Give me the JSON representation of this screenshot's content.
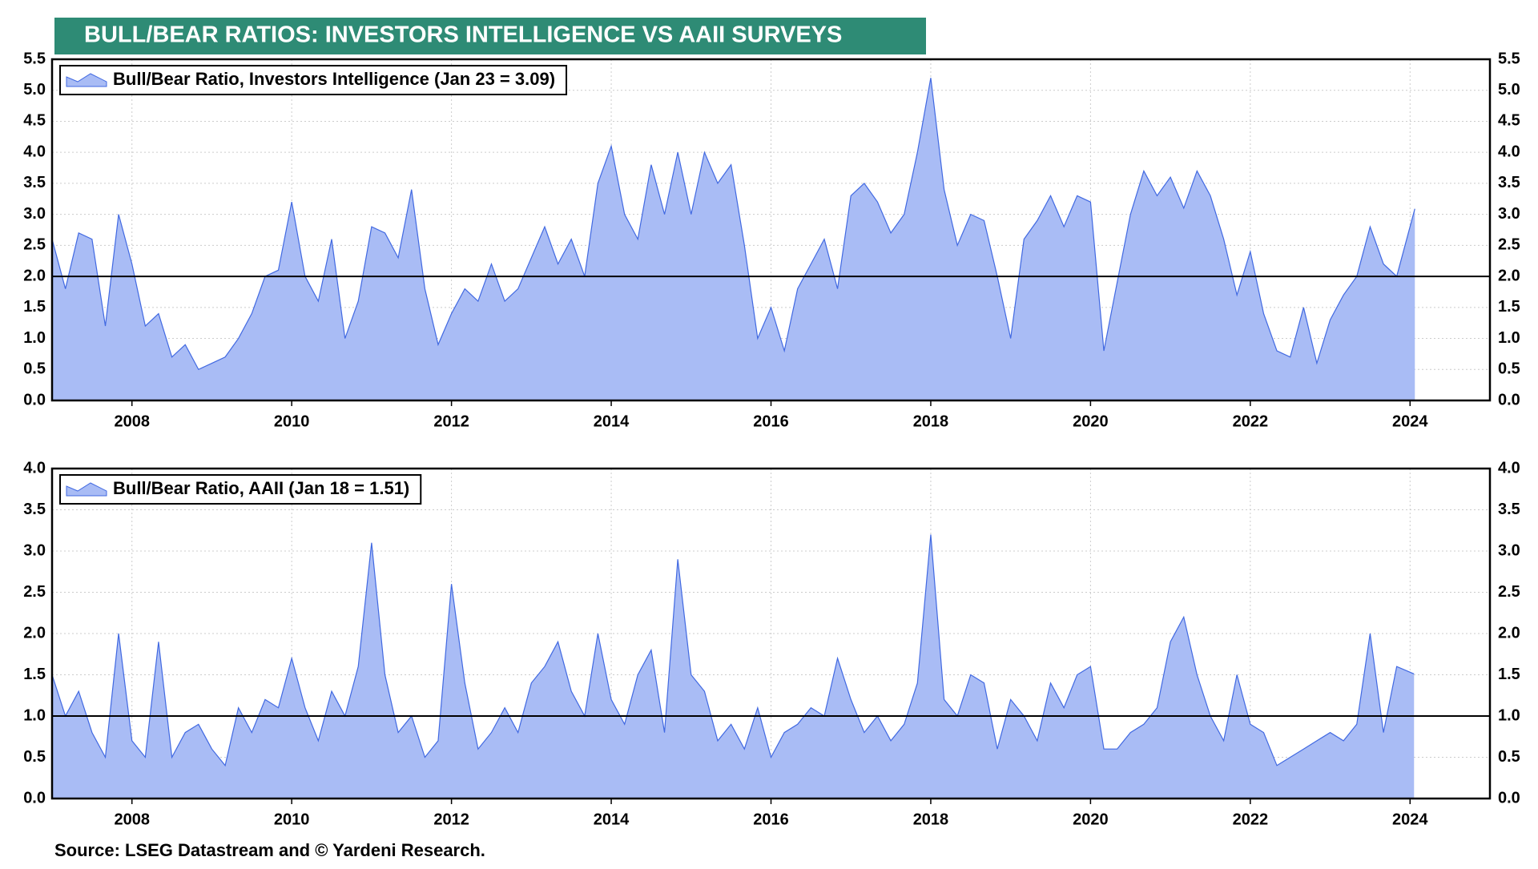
{
  "title": "BULL/BEAR RATIOS: INVESTORS INTELLIGENCE VS AAII SURVEYS",
  "source": "Source: LSEG Datastream and © Yardeni Research.",
  "chart_data": [
    {
      "type": "area",
      "series": [
        {
          "name": "Bull/Bear Ratio, Investors Intelligence (Jan 23 = 3.09)",
          "color": "#4169e1",
          "fill": "#a9bcf5",
          "x": [
            2007,
            2007.167,
            2007.333,
            2007.5,
            2007.667,
            2007.833,
            2008,
            2008.167,
            2008.333,
            2008.5,
            2008.667,
            2008.833,
            2009,
            2009.167,
            2009.333,
            2009.5,
            2009.667,
            2009.833,
            2010,
            2010.167,
            2010.333,
            2010.5,
            2010.667,
            2010.833,
            2011,
            2011.167,
            2011.333,
            2011.5,
            2011.667,
            2011.833,
            2012,
            2012.167,
            2012.333,
            2012.5,
            2012.667,
            2012.833,
            2013,
            2013.167,
            2013.333,
            2013.5,
            2013.667,
            2013.833,
            2014,
            2014.167,
            2014.333,
            2014.5,
            2014.667,
            2014.833,
            2015,
            2015.167,
            2015.333,
            2015.5,
            2015.667,
            2015.833,
            2016,
            2016.167,
            2016.333,
            2016.5,
            2016.667,
            2016.833,
            2017,
            2017.167,
            2017.333,
            2017.5,
            2017.667,
            2017.833,
            2018,
            2018.167,
            2018.333,
            2018.5,
            2018.667,
            2018.833,
            2019,
            2019.167,
            2019.333,
            2019.5,
            2019.667,
            2019.833,
            2020,
            2020.167,
            2020.333,
            2020.5,
            2020.667,
            2020.833,
            2021,
            2021.167,
            2021.333,
            2021.5,
            2021.667,
            2021.833,
            2022,
            2022.167,
            2022.333,
            2022.5,
            2022.667,
            2022.833,
            2023,
            2023.167,
            2023.333,
            2023.5,
            2023.667,
            2023.833,
            2024.06
          ],
          "values": [
            2.6,
            1.8,
            2.7,
            2.6,
            1.2,
            3.0,
            2.2,
            1.2,
            1.4,
            0.7,
            0.9,
            0.5,
            0.6,
            0.7,
            1.0,
            1.4,
            2.0,
            2.1,
            3.2,
            2.0,
            1.6,
            2.6,
            1.0,
            1.6,
            2.8,
            2.7,
            2.3,
            3.4,
            1.8,
            0.9,
            1.4,
            1.8,
            1.6,
            2.2,
            1.6,
            1.8,
            2.3,
            2.8,
            2.2,
            2.6,
            2.0,
            3.5,
            4.1,
            3.0,
            2.6,
            3.8,
            3.0,
            4.0,
            3.0,
            4.0,
            3.5,
            3.8,
            2.5,
            1.0,
            1.5,
            0.8,
            1.8,
            2.2,
            2.6,
            1.8,
            3.3,
            3.5,
            3.2,
            2.7,
            3.0,
            4.0,
            5.2,
            3.4,
            2.5,
            3.0,
            2.9,
            2.0,
            1.0,
            2.6,
            2.9,
            3.3,
            2.8,
            3.3,
            3.2,
            0.8,
            1.9,
            3.0,
            3.7,
            3.3,
            3.6,
            3.1,
            3.7,
            3.3,
            2.6,
            1.7,
            2.4,
            1.4,
            0.8,
            0.7,
            1.5,
            0.6,
            1.3,
            1.7,
            2.0,
            2.8,
            2.2,
            2.0,
            3.09
          ]
        }
      ],
      "xlim": [
        2007,
        2025
      ],
      "xticks": [
        2008,
        2010,
        2012,
        2014,
        2016,
        2018,
        2020,
        2022,
        2024
      ],
      "ylim": [
        0,
        5.5
      ],
      "yticks": [
        {
          "value": 0,
          "label": "0.0"
        },
        0.5,
        {
          "value": 1,
          "label": "1.0"
        },
        1.5,
        {
          "value": 2,
          "label": "2.0"
        },
        2.5,
        {
          "value": 3,
          "label": "3.0"
        },
        3.5,
        {
          "value": 4,
          "label": "4.0"
        },
        4.5,
        {
          "value": 5,
          "label": "5.0"
        },
        5.5
      ],
      "reference_line": 2,
      "grid": true,
      "legend": "upper left"
    },
    {
      "type": "area",
      "series": [
        {
          "name": "Bull/Bear Ratio, AAII (Jan 18 = 1.51)",
          "color": "#4169e1",
          "fill": "#a9bcf5",
          "x": [
            2007,
            2007.167,
            2007.333,
            2007.5,
            2007.667,
            2007.833,
            2008,
            2008.167,
            2008.333,
            2008.5,
            2008.667,
            2008.833,
            2009,
            2009.167,
            2009.333,
            2009.5,
            2009.667,
            2009.833,
            2010,
            2010.167,
            2010.333,
            2010.5,
            2010.667,
            2010.833,
            2011,
            2011.167,
            2011.333,
            2011.5,
            2011.667,
            2011.833,
            2012,
            2012.167,
            2012.333,
            2012.5,
            2012.667,
            2012.833,
            2013,
            2013.167,
            2013.333,
            2013.5,
            2013.667,
            2013.833,
            2014,
            2014.167,
            2014.333,
            2014.5,
            2014.667,
            2014.833,
            2015,
            2015.167,
            2015.333,
            2015.5,
            2015.667,
            2015.833,
            2016,
            2016.167,
            2016.333,
            2016.5,
            2016.667,
            2016.833,
            2017,
            2017.167,
            2017.333,
            2017.5,
            2017.667,
            2017.833,
            2018,
            2018.167,
            2018.333,
            2018.5,
            2018.667,
            2018.833,
            2019,
            2019.167,
            2019.333,
            2019.5,
            2019.667,
            2019.833,
            2020,
            2020.167,
            2020.333,
            2020.5,
            2020.667,
            2020.833,
            2021,
            2021.167,
            2021.333,
            2021.5,
            2021.667,
            2021.833,
            2022,
            2022.167,
            2022.333,
            2022.5,
            2022.667,
            2022.833,
            2023,
            2023.167,
            2023.333,
            2023.5,
            2023.667,
            2023.833,
            2024.05
          ],
          "values": [
            1.5,
            1.0,
            1.3,
            0.8,
            0.5,
            2.0,
            0.7,
            0.5,
            1.9,
            0.5,
            0.8,
            0.9,
            0.6,
            0.4,
            1.1,
            0.8,
            1.2,
            1.1,
            1.7,
            1.1,
            0.7,
            1.3,
            1.0,
            1.6,
            3.1,
            1.5,
            0.8,
            1.0,
            0.5,
            0.7,
            2.6,
            1.4,
            0.6,
            0.8,
            1.1,
            0.8,
            1.4,
            1.6,
            1.9,
            1.3,
            1.0,
            2.0,
            1.2,
            0.9,
            1.5,
            1.8,
            0.8,
            2.9,
            1.5,
            1.3,
            0.7,
            0.9,
            0.6,
            1.1,
            0.5,
            0.8,
            0.9,
            1.1,
            1.0,
            1.7,
            1.2,
            0.8,
            1.0,
            0.7,
            0.9,
            1.4,
            3.2,
            1.2,
            1.0,
            1.5,
            1.4,
            0.6,
            1.2,
            1.0,
            0.7,
            1.4,
            1.1,
            1.5,
            1.6,
            0.6,
            0.6,
            0.8,
            0.9,
            1.1,
            1.9,
            2.2,
            1.5,
            1.0,
            0.7,
            1.5,
            0.9,
            0.8,
            0.4,
            0.5,
            0.6,
            0.7,
            0.8,
            0.7,
            0.9,
            2.0,
            0.8,
            1.6,
            1.51
          ]
        }
      ],
      "xlim": [
        2007,
        2025
      ],
      "xticks": [
        2008,
        2010,
        2012,
        2014,
        2016,
        2018,
        2020,
        2022,
        2024
      ],
      "ylim": [
        0,
        4
      ],
      "yticks": [
        {
          "value": 0,
          "label": "0.0"
        },
        0.5,
        {
          "value": 1,
          "label": "1.0"
        },
        1.5,
        {
          "value": 2,
          "label": "2.0"
        },
        2.5,
        {
          "value": 3,
          "label": "3.0"
        },
        3.5,
        {
          "value": 4,
          "label": "4.0"
        }
      ],
      "reference_line": 1,
      "grid": true,
      "legend": "upper left"
    }
  ]
}
